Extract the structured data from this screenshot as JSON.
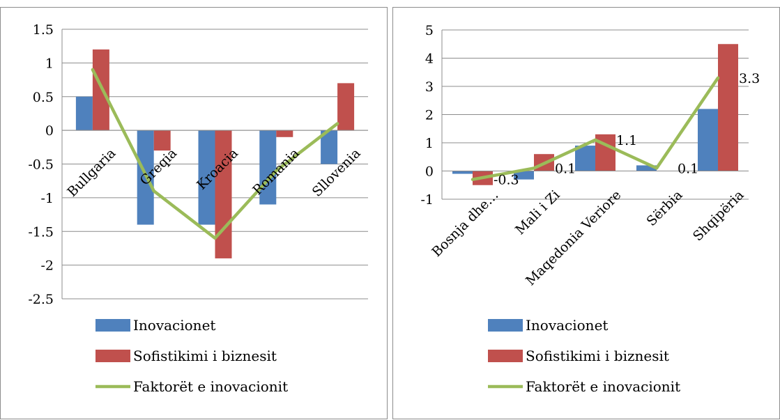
{
  "chart_data": [
    {
      "type": "bar",
      "categories": [
        "Bullgaria",
        "Greqia",
        "Kroacia",
        "Romania",
        "Sllovenia"
      ],
      "ylim": [
        -2.5,
        1.5
      ],
      "yticks": [
        "1.5",
        "1",
        "0.5",
        "0",
        "-0.5",
        "-1",
        "-1.5",
        "-2",
        "-2.5"
      ],
      "grid": true,
      "legend_position": "bottom",
      "series": [
        {
          "name": "Inovacionet",
          "kind": "bar",
          "color": "#4f81bd",
          "values": [
            0.5,
            -1.4,
            -1.4,
            -1.1,
            -0.5
          ]
        },
        {
          "name": "Sofistikimi i biznesit",
          "kind": "bar",
          "color": "#c0504d",
          "values": [
            1.2,
            -0.3,
            -1.9,
            -0.1,
            0.7
          ]
        },
        {
          "name": "Faktorët e inovacionit",
          "kind": "line",
          "color": "#9bbb59",
          "values": [
            0.9,
            -0.9,
            -1.6,
            -0.6,
            0.1
          ]
        }
      ]
    },
    {
      "type": "bar",
      "categories": [
        "Bosnja dhe…",
        "Mali i Zi",
        "Maqedonia Veriore",
        "Sërbia",
        "Shqipëria"
      ],
      "ylim": [
        -1,
        5
      ],
      "yticks": [
        "5",
        "4",
        "3",
        "2",
        "1",
        "0",
        "-1"
      ],
      "grid": true,
      "legend_position": "bottom",
      "series": [
        {
          "name": "Inovacionet",
          "kind": "bar",
          "color": "#4f81bd",
          "values": [
            -0.1,
            -0.3,
            0.9,
            0.2,
            2.2
          ]
        },
        {
          "name": "Sofistikimi i biznesit",
          "kind": "bar",
          "color": "#c0504d",
          "values": [
            -0.5,
            0.6,
            1.3,
            0.0,
            4.5
          ]
        },
        {
          "name": "Faktorët e inovacionit",
          "kind": "line",
          "color": "#9bbb59",
          "values": [
            -0.3,
            0.1,
            1.1,
            0.1,
            3.3
          ],
          "data_labels": [
            "-0.3",
            "0.1",
            "1.1",
            "0.1",
            "3.3"
          ]
        }
      ]
    }
  ]
}
